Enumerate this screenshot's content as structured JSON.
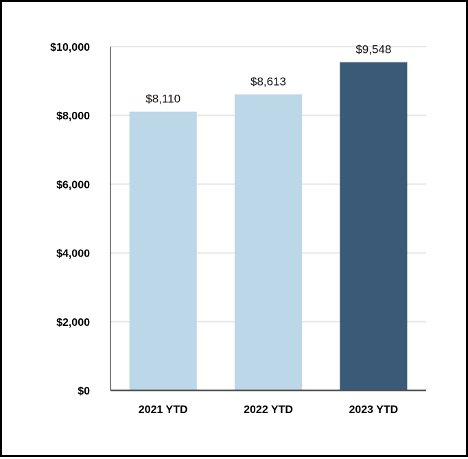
{
  "chart_data": {
    "type": "bar",
    "categories": [
      "2021 YTD",
      "2022 YTD",
      "2023 YTD"
    ],
    "values": [
      8110,
      8613,
      9548
    ],
    "data_labels": [
      "$8,110",
      "$8,613",
      "$9,548"
    ],
    "title": "",
    "xlabel": "",
    "ylabel": "",
    "ylim": [
      0,
      10000
    ],
    "yticks": [
      0,
      2000,
      4000,
      6000,
      8000,
      10000
    ],
    "ytick_labels": [
      "$0",
      "$2,000",
      "$4,000",
      "$6,000",
      "$8,000",
      "$10,000"
    ],
    "grid": true,
    "bar_colors": [
      "#bcd7e8",
      "#bcd7e8",
      "#3a5a78"
    ],
    "grid_color": "#e6e6e6",
    "axis_color": "#555555"
  }
}
